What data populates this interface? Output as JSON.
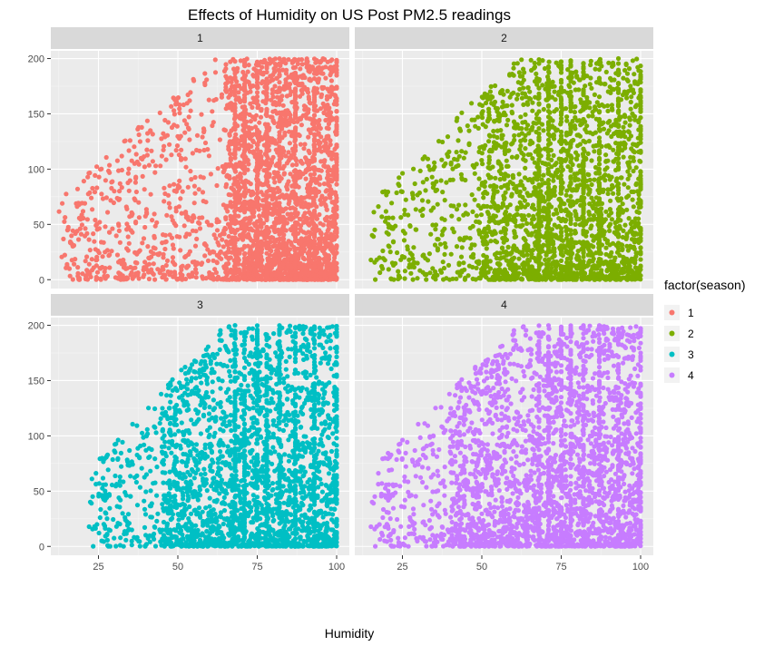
{
  "chart_data": {
    "type": "scatter",
    "title": "Effects of Humidity on US Post PM2.5 readings",
    "xlabel": "Humidity",
    "ylabel": "",
    "xlim": [
      10,
      104
    ],
    "ylim": [
      -8,
      207
    ],
    "x_ticks": [
      25,
      50,
      75,
      100
    ],
    "y_ticks": [
      0,
      50,
      100,
      150,
      200
    ],
    "grid": true,
    "facet_by": "season",
    "legend": {
      "title": "factor(season)",
      "position": "right",
      "entries": [
        {
          "label": "1",
          "color": "#F8766D"
        },
        {
          "label": "2",
          "color": "#7CAE00"
        },
        {
          "label": "3",
          "color": "#00BFC4"
        },
        {
          "label": "4",
          "color": "#C77CFF"
        }
      ]
    },
    "panels": [
      {
        "strip": "1",
        "season": "1",
        "color": "#F8766D",
        "x_range": [
          12,
          100
        ],
        "dense_x": [
          65,
          100
        ],
        "density": 1.0
      },
      {
        "strip": "2",
        "season": "2",
        "color": "#7CAE00",
        "x_range": [
          15,
          100
        ],
        "dense_x": [
          50,
          100
        ],
        "density": 0.8
      },
      {
        "strip": "3",
        "season": "3",
        "color": "#00BFC4",
        "x_range": [
          22,
          100
        ],
        "dense_x": [
          45,
          100
        ],
        "density": 0.85
      },
      {
        "strip": "4",
        "season": "4",
        "color": "#C77CFF",
        "x_range": [
          15,
          100
        ],
        "dense_x": [
          40,
          100
        ],
        "density": 0.9
      }
    ],
    "vertical_bands_x": [
      68,
      71,
      75,
      78,
      82,
      87,
      93,
      100
    ]
  }
}
